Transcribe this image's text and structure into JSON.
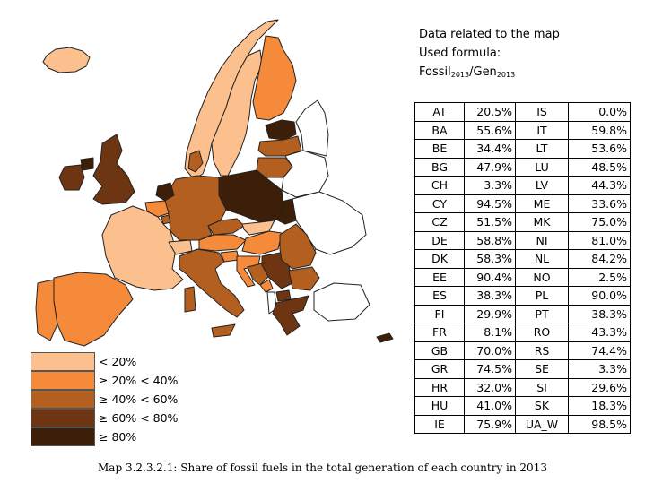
{
  "info": {
    "line1": "Data related to the map",
    "line2": "Used formula:",
    "formula_a": "Fossil",
    "formula_sub_a": "2013",
    "formula_b": "/Gen",
    "formula_sub_b": "2013"
  },
  "table": {
    "rows": [
      {
        "c1": "AT",
        "v1": "20.5%",
        "c2": "IS",
        "v2": "0.0%"
      },
      {
        "c1": "BA",
        "v1": "55.6%",
        "c2": "IT",
        "v2": "59.8%"
      },
      {
        "c1": "BE",
        "v1": "34.4%",
        "c2": "LT",
        "v2": "53.6%"
      },
      {
        "c1": "BG",
        "v1": "47.9%",
        "c2": "LU",
        "v2": "48.5%"
      },
      {
        "c1": "CH",
        "v1": "3.3%",
        "c2": "LV",
        "v2": "44.3%"
      },
      {
        "c1": "CY",
        "v1": "94.5%",
        "c2": "ME",
        "v2": "33.6%"
      },
      {
        "c1": "CZ",
        "v1": "51.5%",
        "c2": "MK",
        "v2": "75.0%"
      },
      {
        "c1": "DE",
        "v1": "58.8%",
        "c2": "NI",
        "v2": "81.0%"
      },
      {
        "c1": "DK",
        "v1": "58.3%",
        "c2": "NL",
        "v2": "84.2%"
      },
      {
        "c1": "EE",
        "v1": "90.4%",
        "c2": "NO",
        "v2": "2.5%"
      },
      {
        "c1": "ES",
        "v1": "38.3%",
        "c2": "PL",
        "v2": "90.0%"
      },
      {
        "c1": "FI",
        "v1": "29.9%",
        "c2": "PT",
        "v2": "38.3%"
      },
      {
        "c1": "FR",
        "v1": "8.1%",
        "c2": "RO",
        "v2": "43.3%"
      },
      {
        "c1": "GB",
        "v1": "70.0%",
        "c2": "RS",
        "v2": "74.4%"
      },
      {
        "c1": "GR",
        "v1": "74.5%",
        "c2": "SE",
        "v2": "3.3%"
      },
      {
        "c1": "HR",
        "v1": "32.0%",
        "c2": "SI",
        "v2": "29.6%"
      },
      {
        "c1": "HU",
        "v1": "41.0%",
        "c2": "SK",
        "v2": "18.3%"
      },
      {
        "c1": "IE",
        "v1": "75.9%",
        "c2": "UA_W",
        "v2": "98.5%"
      }
    ]
  },
  "legend": [
    {
      "label": "< 20%",
      "color": "#fbc08e"
    },
    {
      "label": "≥ 20% < 40%",
      "color": "#f58b3a"
    },
    {
      "label": "≥ 40% < 60%",
      "color": "#b35f20"
    },
    {
      "label": "≥ 60% < 80%",
      "color": "#6e3512"
    },
    {
      "label": "≥ 80%",
      "color": "#3c1e09"
    }
  ],
  "colors": {
    "c1": "#fbc08e",
    "c2": "#f58b3a",
    "c3": "#b35f20",
    "c4": "#6e3512",
    "c5": "#3c1e09",
    "none": "#ffffff",
    "border": "#222222"
  },
  "caption": "Map 3.2.3.2.1: Share of fossil fuels in the total generation of each country in 2013"
}
